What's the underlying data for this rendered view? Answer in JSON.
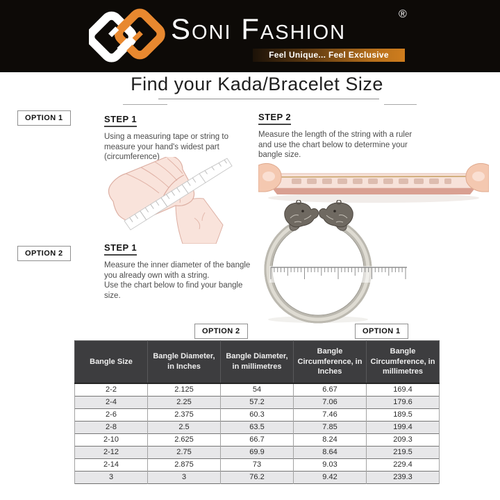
{
  "brand": {
    "name": "Soni Fashion",
    "registered_mark": "®",
    "tagline": "Feel Unique... Feel Exclusive"
  },
  "page": {
    "title": "Find your Kada/Bracelet Size"
  },
  "option1": {
    "label": "OPTION 1",
    "step1": {
      "heading": "STEP 1",
      "text": "Using a measuring tape or string to\nmeasure your hand's widest part\n(circumference)"
    },
    "step2": {
      "heading": "STEP 2",
      "text": "Measure the length of the string with a ruler\nand use the chart below to determine your\nbangle size."
    }
  },
  "option2": {
    "label": "OPTION 2",
    "step1": {
      "heading": "STEP 1",
      "text": "Measure the inner diameter of the bangle\nyou already own with a string.\nUse the chart below to find your bangle\nsize."
    }
  },
  "size_chart": {
    "option2_column_label": "OPTION 2",
    "option1_column_label": "OPTION 1",
    "headers": [
      "Bangle Size",
      "Bangle Diameter, in Inches",
      "Bangle Diameter, in millimetres",
      "Bangle Circumference, in Inches",
      "Bangle Circumference, in millimetres"
    ],
    "rows": [
      [
        "2-2",
        "2.125",
        "54",
        "6.67",
        "169.4"
      ],
      [
        "2-4",
        "2.25",
        "57.2",
        "7.06",
        "179.6"
      ],
      [
        "2-6",
        "2.375",
        "60.3",
        "7.46",
        "189.5"
      ],
      [
        "2-8",
        "2.5",
        "63.5",
        "7.85",
        "199.4"
      ],
      [
        "2-10",
        "2.625",
        "66.7",
        "8.24",
        "209.3"
      ],
      [
        "2-12",
        "2.75",
        "69.9",
        "8.64",
        "219.5"
      ],
      [
        "2-14",
        "2.875",
        "73",
        "9.03",
        "229.4"
      ],
      [
        "3",
        "3",
        "76.2",
        "9.42",
        "239.3"
      ]
    ]
  },
  "icons": {
    "logo": "interlocked-square-links-logo",
    "option1_step1_illustration": "hand-with-measuring-tape",
    "option1_step2_illustration": "thumbs-holding-string-over-ruler",
    "option2_step1_illustration": "silver-kada-with-ruler"
  },
  "colors": {
    "header_background": "#0d0a07",
    "logo_orange": "#e8882f",
    "tagline_gradient_start": "#1c1208",
    "tagline_gradient_end": "#cf7d1d",
    "table_header_background": "#3d3d3f",
    "table_alt_row_background": "#e7e7e9"
  }
}
